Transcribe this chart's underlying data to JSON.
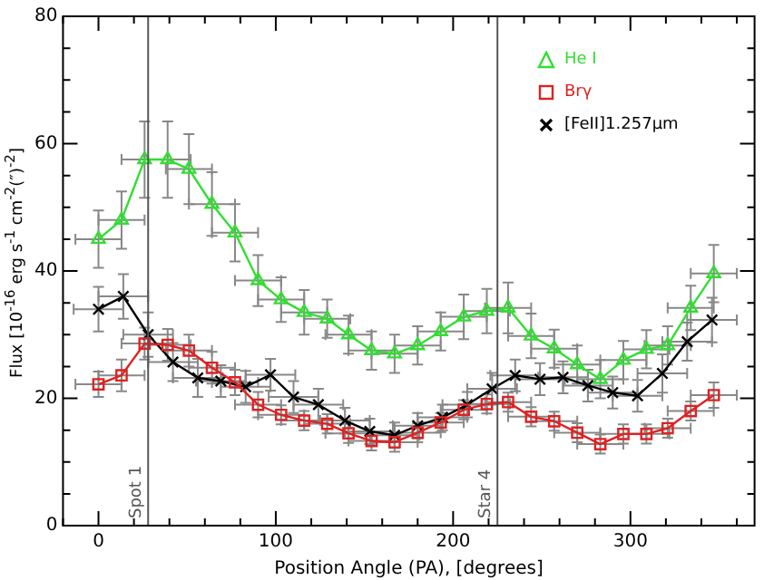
{
  "chart_data": {
    "type": "line",
    "xlabel": "Position Angle (PA), [degrees]",
    "ylabel": "Flux [10$^{-16}$ erg s$^{-1}$ cm$^{-2}$(″)$^{-2}$]",
    "xlim": [
      -20,
      370
    ],
    "xticks": [
      0,
      100,
      200,
      300
    ],
    "ylim": [
      0,
      80
    ],
    "yticks": [
      0,
      20,
      40,
      60,
      80
    ],
    "grid": false,
    "legend": "top right",
    "series": [
      {
        "name": "He I",
        "color": "#33dd33",
        "marker": "triangle",
        "x": [
          0,
          13,
          26,
          39,
          51,
          64,
          77,
          90,
          103,
          116,
          129,
          141,
          154,
          167,
          180,
          193,
          206,
          219,
          231,
          244,
          257,
          270,
          283,
          296,
          309,
          321,
          334,
          347
        ],
        "values": [
          45,
          48,
          57.5,
          57.5,
          56,
          50.5,
          46,
          38.5,
          35.5,
          33.5,
          32.5,
          30,
          27.5,
          27,
          28.3,
          30.5,
          32.8,
          33.7,
          34.2,
          29.8,
          27.8,
          25.3,
          23,
          26,
          27.7,
          28.3,
          34.2,
          39.6
        ],
        "errors": [
          4.5,
          4.5,
          6,
          6,
          5.5,
          5,
          4.5,
          4,
          3.5,
          3.5,
          3,
          3,
          3,
          3,
          3,
          3,
          3.5,
          3.5,
          4,
          3.5,
          3,
          3,
          3,
          3,
          3,
          3,
          3.5,
          4.5
        ],
        "xerrors": [
          13,
          13,
          13,
          13,
          13,
          13,
          13,
          13,
          13,
          13,
          13,
          13,
          13,
          13,
          13,
          13,
          13,
          13,
          13,
          13,
          13,
          13,
          13,
          13,
          13,
          13,
          13,
          13
        ]
      },
      {
        "name": "Brγ",
        "color": "#dd2222",
        "marker": "square",
        "x": [
          0,
          13,
          26,
          39,
          51,
          64,
          77,
          90,
          103,
          116,
          129,
          141,
          154,
          167,
          180,
          193,
          206,
          219,
          231,
          244,
          257,
          270,
          283,
          296,
          309,
          321,
          334,
          347
        ],
        "values": [
          22.2,
          23.6,
          28.6,
          28.4,
          27.5,
          24.8,
          22.5,
          19,
          17.4,
          16.5,
          16,
          14.5,
          13.3,
          13.1,
          14.6,
          16.2,
          18.2,
          19.1,
          19.4,
          17.1,
          16.4,
          14.6,
          12.8,
          14.4,
          14.4,
          15.3,
          18,
          20.5
        ],
        "errors": [
          2,
          2.5,
          2.5,
          2.5,
          2.5,
          2.5,
          2,
          2,
          1.5,
          1.5,
          1.5,
          1.5,
          1.5,
          1.5,
          1.5,
          1.5,
          1.5,
          1.5,
          1.5,
          1.5,
          1.5,
          1.5,
          1.5,
          1.5,
          1.5,
          1.5,
          1.5,
          2
        ],
        "xerrors": [
          13,
          13,
          13,
          13,
          13,
          13,
          13,
          13,
          13,
          13,
          13,
          13,
          13,
          13,
          13,
          13,
          13,
          13,
          13,
          13,
          13,
          13,
          13,
          13,
          13,
          13,
          13,
          13
        ]
      },
      {
        "name": "[FeII]1.257μm",
        "color": "#000000",
        "marker": "cross",
        "x": [
          0,
          14,
          28,
          42,
          56,
          69,
          83,
          97,
          110,
          124,
          139,
          153,
          167,
          180,
          194,
          208,
          222,
          235,
          249,
          262,
          276,
          290,
          304,
          318,
          332,
          346
        ],
        "values": [
          34,
          36,
          30,
          25.7,
          23.2,
          22.7,
          21.8,
          23.7,
          20.2,
          19,
          16.5,
          14.8,
          14.2,
          15.7,
          17,
          19,
          21.5,
          23.6,
          23,
          23.3,
          22,
          20.9,
          20.4,
          23.9,
          28.9,
          32.3
        ],
        "errors": [
          3.5,
          3.5,
          3.5,
          3,
          3,
          2.5,
          2.5,
          2.5,
          2.5,
          2.5,
          2,
          2,
          2,
          2,
          2,
          2,
          2.5,
          2.5,
          2.5,
          2.5,
          2.5,
          2.5,
          2.5,
          3,
          3,
          3.5
        ],
        "xerrors": [
          14,
          14,
          14,
          14,
          14,
          14,
          14,
          14,
          14,
          14,
          14,
          14,
          14,
          14,
          14,
          14,
          14,
          14,
          14,
          14,
          14,
          14,
          14,
          14,
          14,
          14
        ]
      }
    ],
    "ref_lines": [
      {
        "axis": "x",
        "value": 28,
        "label": "Spot 1",
        "color": "#555555"
      },
      {
        "axis": "x",
        "value": 225,
        "label": "Star 4",
        "color": "#555555"
      }
    ]
  }
}
